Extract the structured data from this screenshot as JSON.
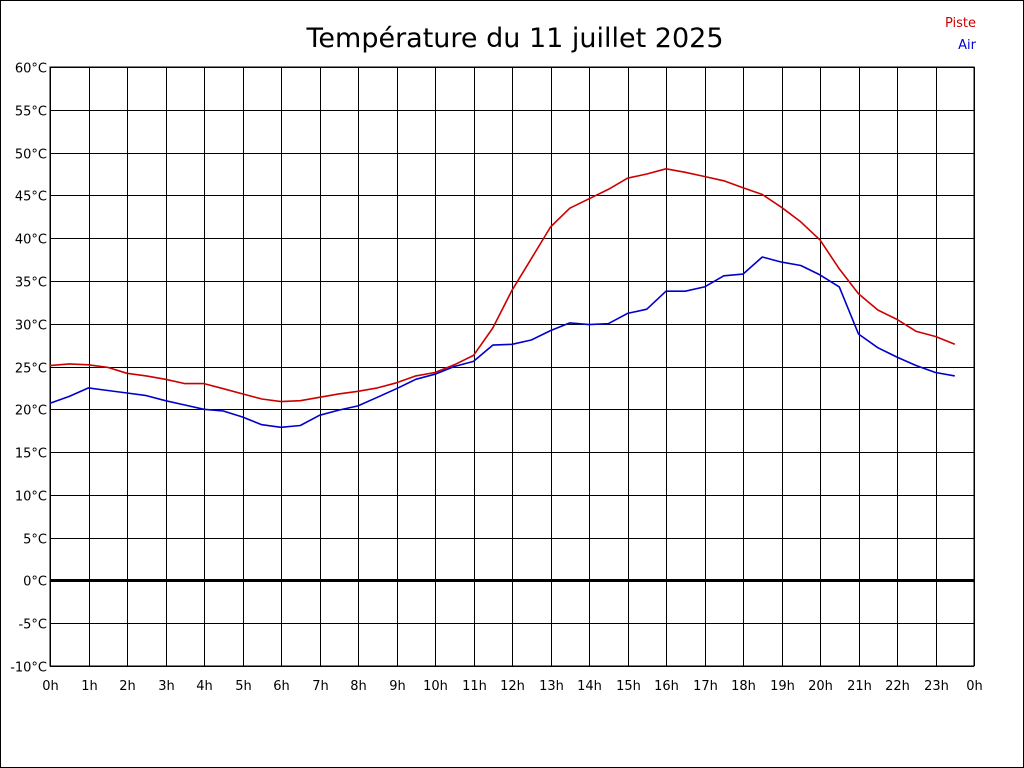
{
  "chart_data": {
    "type": "line",
    "title": "Température du 11 juillet 2025",
    "xlabel": "",
    "ylabel": "",
    "x_ticks": [
      "0h",
      "1h",
      "2h",
      "3h",
      "4h",
      "5h",
      "6h",
      "7h",
      "8h",
      "9h",
      "10h",
      "11h",
      "12h",
      "13h",
      "14h",
      "15h",
      "16h",
      "17h",
      "18h",
      "19h",
      "20h",
      "21h",
      "22h",
      "23h",
      "0h"
    ],
    "y_ticks": [
      "60°C",
      "55°C",
      "50°C",
      "45°C",
      "40°C",
      "35°C",
      "30°C",
      "25°C",
      "20°C",
      "15°C",
      "10°C",
      "5°C",
      "0°C",
      "-5°C",
      "-10°C"
    ],
    "xlim": [
      0,
      24
    ],
    "ylim": [
      -10,
      60
    ],
    "grid": true,
    "legend_position": "top-right",
    "x": [
      0,
      0.5,
      1,
      1.5,
      2,
      2.5,
      3,
      3.5,
      4,
      4.5,
      5,
      5.5,
      6,
      6.5,
      7,
      7.5,
      8,
      8.5,
      9,
      9.5,
      10,
      10.5,
      11,
      11.5,
      12,
      12.5,
      13,
      13.5,
      14,
      14.5,
      15,
      15.5,
      16,
      16.5,
      17,
      17.5,
      18,
      18.5,
      19,
      19.5,
      20,
      20.5,
      21,
      21.5,
      22,
      22.5,
      23,
      23.5
    ],
    "series": [
      {
        "name": "Piste",
        "color": "#cc0000",
        "values": [
          25.1,
          25.3,
          25.2,
          24.9,
          24.2,
          23.9,
          23.5,
          23.0,
          23.0,
          22.4,
          21.8,
          21.2,
          20.9,
          21.0,
          21.4,
          21.8,
          22.1,
          22.5,
          23.1,
          23.9,
          24.3,
          25.2,
          26.3,
          29.5,
          33.9,
          37.6,
          41.3,
          43.5,
          44.6,
          45.7,
          47.0,
          47.5,
          48.1,
          47.7,
          47.2,
          46.7,
          45.9,
          45.1,
          43.6,
          41.9,
          39.8,
          36.4,
          33.5,
          31.6,
          30.5,
          29.1,
          28.5,
          27.6
        ]
      },
      {
        "name": "Air",
        "color": "#0000cc",
        "values": [
          20.7,
          21.5,
          22.5,
          22.2,
          21.9,
          21.6,
          21.0,
          20.5,
          20.0,
          19.8,
          19.1,
          18.2,
          17.9,
          18.1,
          19.3,
          19.9,
          20.4,
          21.4,
          22.4,
          23.5,
          24.1,
          25.0,
          25.6,
          27.5,
          27.6,
          28.1,
          29.2,
          30.1,
          29.9,
          30.0,
          31.2,
          31.7,
          33.8,
          33.8,
          34.3,
          35.6,
          35.8,
          37.8,
          37.2,
          36.8,
          35.7,
          34.3,
          28.8,
          27.2,
          26.1,
          25.1,
          24.3,
          23.9
        ]
      }
    ]
  }
}
